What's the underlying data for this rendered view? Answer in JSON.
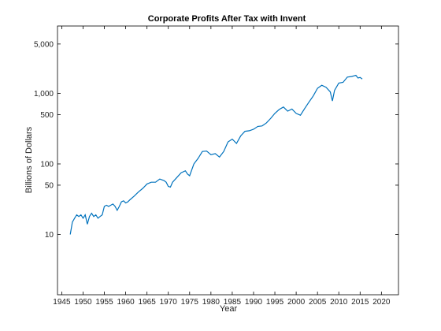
{
  "chart_data": {
    "type": "line",
    "title": "Corporate Profits After Tax with Invent",
    "xlabel": "Year",
    "ylabel": "Billions of Dollars",
    "yscale": "log",
    "xlim": [
      1944,
      2024
    ],
    "ylim": [
      1.4,
      9000
    ],
    "grid": false,
    "x_ticks": [
      1945,
      1950,
      1955,
      1960,
      1965,
      1970,
      1975,
      1980,
      1985,
      1990,
      1995,
      2000,
      2005,
      2010,
      2015,
      2020
    ],
    "y_ticks": [
      {
        "value": 10,
        "label": "10"
      },
      {
        "value": 50,
        "label": "50"
      },
      {
        "value": 100,
        "label": "100"
      },
      {
        "value": 500,
        "label": "500"
      },
      {
        "value": 1000,
        "label": "1,000"
      },
      {
        "value": 5000,
        "label": "5,000"
      }
    ],
    "line_color": "#0072BD",
    "series": [
      {
        "x": [
          1947.0,
          1947.5,
          1948.0,
          1948.5,
          1949.0,
          1949.5,
          1950.0,
          1950.5,
          1951.0,
          1951.5,
          1952.0,
          1952.5,
          1953.0,
          1953.5,
          1954.0,
          1954.5,
          1955.0,
          1955.5,
          1956.0,
          1956.5,
          1957.0,
          1957.5,
          1958.0,
          1958.5,
          1959.0,
          1959.5,
          1960.0,
          1960.5,
          1961.0,
          1962.0,
          1963.0,
          1964.0,
          1965.0,
          1966.0,
          1967.0,
          1968.0,
          1969.0,
          1969.5,
          1970.0,
          1970.5,
          1971.0,
          1972.0,
          1973.0,
          1974.0,
          1974.5,
          1975.0,
          1976.0,
          1977.0,
          1978.0,
          1979.0,
          1980.0,
          1981.0,
          1982.0,
          1983.0,
          1984.0,
          1985.0,
          1986.0,
          1987.0,
          1988.0,
          1989.0,
          1990.0,
          1991.0,
          1992.0,
          1993.0,
          1994.0,
          1995.0,
          1996.0,
          1997.0,
          1998.0,
          1999.0,
          2000.0,
          2001.0,
          2002.0,
          2003.0,
          2004.0,
          2005.0,
          2006.0,
          2007.0,
          2008.0,
          2008.5,
          2009.0,
          2010.0,
          2011.0,
          2012.0,
          2013.0,
          2014.0,
          2014.5,
          2015.0,
          2015.5
        ],
        "y": [
          10,
          15,
          17,
          19,
          18,
          19,
          17,
          19,
          14,
          18,
          20,
          18,
          19,
          17,
          18,
          19,
          25,
          26,
          25,
          26,
          27,
          25,
          22,
          25,
          29,
          30,
          28,
          29,
          31,
          35,
          40,
          45,
          52,
          55,
          55,
          61,
          58,
          55,
          48,
          47,
          55,
          64,
          75,
          80,
          72,
          68,
          100,
          120,
          150,
          152,
          135,
          140,
          125,
          150,
          205,
          225,
          195,
          250,
          290,
          295,
          310,
          340,
          345,
          380,
          440,
          520,
          590,
          640,
          560,
          600,
          520,
          490,
          610,
          750,
          920,
          1180,
          1300,
          1220,
          1050,
          780,
          1100,
          1400,
          1430,
          1700,
          1730,
          1800,
          1650,
          1680,
          1600
        ]
      }
    ]
  }
}
